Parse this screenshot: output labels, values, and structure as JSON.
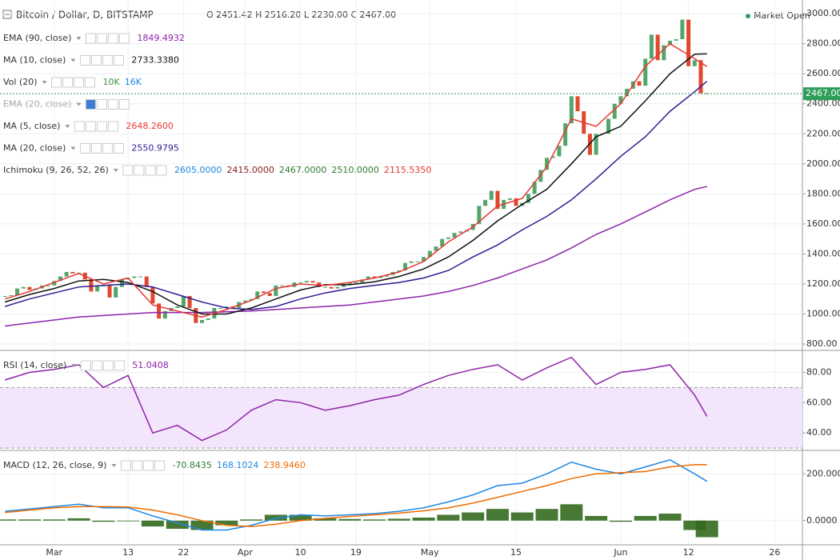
{
  "chart_data": [
    {
      "type": "candlestick",
      "title": "Bitcoin / Dollar, D, BITSTAMP",
      "ohlc_text": "O 2451.42 H 2516.20 L 2230.00 C 2467.00",
      "status": "Market Open",
      "closes": [
        1120,
        1125,
        1170,
        1180,
        1160,
        1170,
        1190,
        1190,
        1220,
        1250,
        1280,
        1270,
        1275,
        1230,
        1150,
        1190,
        1190,
        1110,
        1180,
        1230,
        1240,
        1250,
        1250,
        1180,
        1070,
        970,
        1020,
        1040,
        1050,
        1120,
        1040,
        940,
        960,
        970,
        1040,
        1040,
        1050,
        1040,
        1080,
        1090,
        1100,
        1150,
        1140,
        1120,
        1190,
        1190,
        1180,
        1210,
        1210,
        1220,
        1210,
        1180,
        1180,
        1170,
        1180,
        1200,
        1210,
        1210,
        1230,
        1250,
        1240,
        1250,
        1260,
        1280,
        1290,
        1340,
        1350,
        1350,
        1380,
        1420,
        1450,
        1500,
        1510,
        1540,
        1550,
        1560,
        1600,
        1720,
        1760,
        1820,
        1700,
        1760,
        1770,
        1720,
        1740,
        1800,
        1880,
        1960,
        2040,
        2050,
        2120,
        2270,
        2450,
        2350,
        2200,
        2060,
        2200,
        2200,
        2300,
        2400,
        2450,
        2500,
        2550,
        2520,
        2700,
        2860,
        2690,
        2790,
        2820,
        2830,
        2960,
        2650,
        2690,
        2470,
        2467
      ],
      "up_color": "#53a66a",
      "down_color": "#e0472e",
      "series": [
        {
          "color": "#8e24aa",
          "x": [
            0,
            4,
            8,
            12,
            16,
            20,
            24,
            28,
            32,
            36,
            40,
            44,
            48,
            52,
            56,
            60,
            64,
            68,
            72,
            76,
            80,
            84,
            88,
            92,
            96,
            100,
            104,
            108,
            112,
            114
          ],
          "values": [
            920,
            940,
            960,
            980,
            990,
            1000,
            1010,
            1010,
            1010,
            1015,
            1020,
            1030,
            1040,
            1050,
            1060,
            1080,
            1100,
            1120,
            1150,
            1190,
            1240,
            1300,
            1360,
            1440,
            1530,
            1600,
            1680,
            1760,
            1830,
            1849
          ]
        },
        {
          "color": "#311b92",
          "x": [
            0,
            4,
            8,
            12,
            16,
            20,
            24,
            28,
            32,
            36,
            40,
            44,
            48,
            52,
            56,
            60,
            64,
            68,
            72,
            76,
            80,
            84,
            88,
            92,
            96,
            100,
            104,
            108,
            112,
            114
          ],
          "values": [
            1050,
            1100,
            1140,
            1180,
            1190,
            1200,
            1180,
            1130,
            1080,
            1040,
            1030,
            1050,
            1100,
            1140,
            1170,
            1190,
            1210,
            1240,
            1290,
            1380,
            1460,
            1560,
            1650,
            1760,
            1900,
            2050,
            2180,
            2350,
            2480,
            2550
          ]
        },
        {
          "color": "#111111",
          "x": [
            0,
            4,
            8,
            12,
            16,
            20,
            24,
            28,
            32,
            36,
            40,
            44,
            48,
            52,
            56,
            60,
            64,
            68,
            72,
            76,
            80,
            84,
            88,
            92,
            96,
            100,
            104,
            108,
            112,
            114
          ],
          "values": [
            1080,
            1130,
            1170,
            1220,
            1230,
            1210,
            1150,
            1060,
            1000,
            1000,
            1040,
            1100,
            1160,
            1195,
            1195,
            1215,
            1250,
            1300,
            1380,
            1490,
            1620,
            1730,
            1830,
            2000,
            2180,
            2250,
            2420,
            2600,
            2730,
            2733
          ]
        },
        {
          "color": "#e53935",
          "x": [
            0,
            4,
            8,
            12,
            16,
            20,
            24,
            28,
            32,
            36,
            40,
            44,
            48,
            52,
            56,
            60,
            64,
            68,
            72,
            76,
            80,
            84,
            88,
            92,
            96,
            100,
            104,
            108,
            112,
            114
          ],
          "values": [
            1100,
            1150,
            1210,
            1270,
            1200,
            1240,
            1060,
            1020,
            980,
            1030,
            1090,
            1170,
            1200,
            1190,
            1210,
            1240,
            1280,
            1350,
            1480,
            1580,
            1720,
            1770,
            1980,
            2300,
            2250,
            2400,
            2650,
            2800,
            2700,
            2648
          ]
        }
      ],
      "current_price": {
        "value": 2467,
        "label": "2467.00"
      },
      "legend": [
        {
          "label": "EMA (90, close)",
          "values": [
            {
              "text": "1849.4932",
              "color": "#8e24aa"
            }
          ]
        },
        {
          "label": "MA (10, close)",
          "values": [
            {
              "text": "2733.3380",
              "color": "#111111"
            }
          ]
        },
        {
          "label": "Vol (20)",
          "values": [
            {
              "text": "10K",
              "color": "#3e8e3e"
            },
            {
              "text": "16K",
              "color": "#1e88e5"
            }
          ]
        },
        {
          "label": "EMA (20, close)",
          "muted": true,
          "values": []
        },
        {
          "label": "MA (5, close)",
          "values": [
            {
              "text": "2648.2600",
              "color": "#e53935"
            }
          ]
        },
        {
          "label": "MA (20, close)",
          "values": [
            {
              "text": "2550.9795",
              "color": "#311b92"
            }
          ]
        },
        {
          "label": "Ichimoku (9, 26, 52, 26)",
          "values": [
            {
              "text": "2605.0000",
              "color": "#1e88e5"
            },
            {
              "text": "2415.0000",
              "color": "#8b1a1a"
            },
            {
              "text": "2467.0000",
              "color": "#2e7d32"
            },
            {
              "text": "2510.0000",
              "color": "#2e7d32"
            },
            {
              "text": "2115.5350",
              "color": "#e53935"
            }
          ]
        }
      ],
      "xlim": [
        -0.8,
        129.5
      ],
      "xticks": [
        {
          "value": 8,
          "label": "Mar"
        },
        {
          "value": 20,
          "label": "13"
        },
        {
          "value": 29,
          "label": "22"
        },
        {
          "value": 39,
          "label": "Apr"
        },
        {
          "value": 48,
          "label": "10"
        },
        {
          "value": 57,
          "label": "19"
        },
        {
          "value": 69,
          "label": "May"
        },
        {
          "value": 83,
          "label": "15"
        },
        {
          "value": 100,
          "label": "Jun"
        },
        {
          "value": 111,
          "label": "12"
        },
        {
          "value": 125,
          "label": "26"
        }
      ],
      "ylim": [
        763,
        3091
      ],
      "yticks": [
        {
          "value": 800,
          "label": "800.00"
        },
        {
          "value": 1000,
          "label": "1000.00"
        },
        {
          "value": 1200,
          "label": "1200.00"
        },
        {
          "value": 1400,
          "label": "1400.00"
        },
        {
          "value": 1600,
          "label": "1600.00"
        },
        {
          "value": 1800,
          "label": "1800.00"
        },
        {
          "value": 2000,
          "label": "2000.00"
        },
        {
          "value": 2200,
          "label": "2200.00"
        },
        {
          "value": 2400,
          "label": "2400.00"
        },
        {
          "value": 2600,
          "label": "2600.00"
        },
        {
          "value": 2800,
          "label": "2800.00"
        },
        {
          "value": 3000,
          "label": "3000.00"
        }
      ]
    },
    {
      "type": "line",
      "legend": [
        {
          "label": "RSI (14, close)",
          "values": [
            {
              "text": "51.0408",
              "color": "#8e24aa"
            }
          ]
        }
      ],
      "band": [
        30,
        70
      ],
      "band_color": "#f3e5fb",
      "series": [
        {
          "color": "#8e24aa",
          "x": [
            0,
            4,
            8,
            12,
            16,
            20,
            24,
            28,
            32,
            36,
            40,
            44,
            48,
            52,
            56,
            60,
            64,
            68,
            72,
            76,
            80,
            84,
            88,
            92,
            96,
            100,
            104,
            108,
            112,
            114
          ],
          "values": [
            75,
            80,
            82,
            85,
            70,
            78,
            40,
            45,
            35,
            42,
            55,
            62,
            60,
            55,
            58,
            62,
            65,
            72,
            78,
            82,
            85,
            75,
            83,
            90,
            72,
            80,
            82,
            85,
            65,
            51
          ]
        }
      ],
      "ylim": [
        29,
        94
      ],
      "yticks": [
        {
          "value": 40,
          "label": "40.00"
        },
        {
          "value": 60,
          "label": "60.00"
        },
        {
          "value": 80,
          "label": "80.00"
        }
      ]
    },
    {
      "type": "macd",
      "legend": [
        {
          "label": "MACD (12, 26, close, 9)",
          "values": [
            {
              "text": "-70.8435",
              "color": "#2e7d32"
            },
            {
              "text": "168.1024",
              "color": "#1e88e5"
            },
            {
              "text": "238.9460",
              "color": "#ef6c00"
            }
          ]
        }
      ],
      "histogram": {
        "color": "#33691e",
        "x": [
          0,
          4,
          8,
          12,
          16,
          20,
          24,
          28,
          32,
          36,
          40,
          44,
          48,
          52,
          56,
          60,
          64,
          68,
          72,
          76,
          80,
          84,
          88,
          92,
          96,
          100,
          104,
          108,
          112,
          114
        ],
        "values": [
          5,
          5,
          5,
          10,
          -5,
          -3,
          -25,
          -35,
          -40,
          -20,
          5,
          25,
          25,
          10,
          7,
          5,
          8,
          13,
          25,
          35,
          50,
          35,
          50,
          70,
          20,
          -5,
          20,
          30,
          -40,
          -70.8
        ]
      },
      "series": [
        {
          "color": "#1e88e5",
          "x": [
            0,
            4,
            8,
            12,
            16,
            20,
            24,
            28,
            32,
            36,
            40,
            44,
            48,
            52,
            56,
            60,
            64,
            68,
            72,
            76,
            80,
            84,
            88,
            92,
            96,
            100,
            104,
            108,
            112,
            114
          ],
          "values": [
            40,
            50,
            60,
            70,
            55,
            55,
            20,
            -10,
            -40,
            -40,
            -20,
            10,
            25,
            20,
            25,
            30,
            40,
            55,
            80,
            110,
            150,
            160,
            200,
            250,
            220,
            200,
            230,
            260,
            200,
            168
          ]
        },
        {
          "color": "#ef6c00",
          "x": [
            0,
            4,
            8,
            12,
            16,
            20,
            24,
            28,
            32,
            36,
            40,
            44,
            48,
            52,
            56,
            60,
            64,
            68,
            72,
            76,
            80,
            84,
            88,
            92,
            96,
            100,
            104,
            108,
            112,
            114
          ],
          "values": [
            35,
            45,
            55,
            60,
            60,
            58,
            45,
            25,
            0,
            -20,
            -25,
            -15,
            0,
            10,
            18,
            25,
            32,
            42,
            55,
            75,
            100,
            125,
            150,
            180,
            200,
            205,
            210,
            230,
            240,
            239
          ]
        }
      ],
      "ylim": [
        -100,
        297
      ],
      "yticks": [
        {
          "value": 0,
          "label": "0.0000"
        },
        {
          "value": 200,
          "label": "200.0000"
        }
      ]
    }
  ]
}
